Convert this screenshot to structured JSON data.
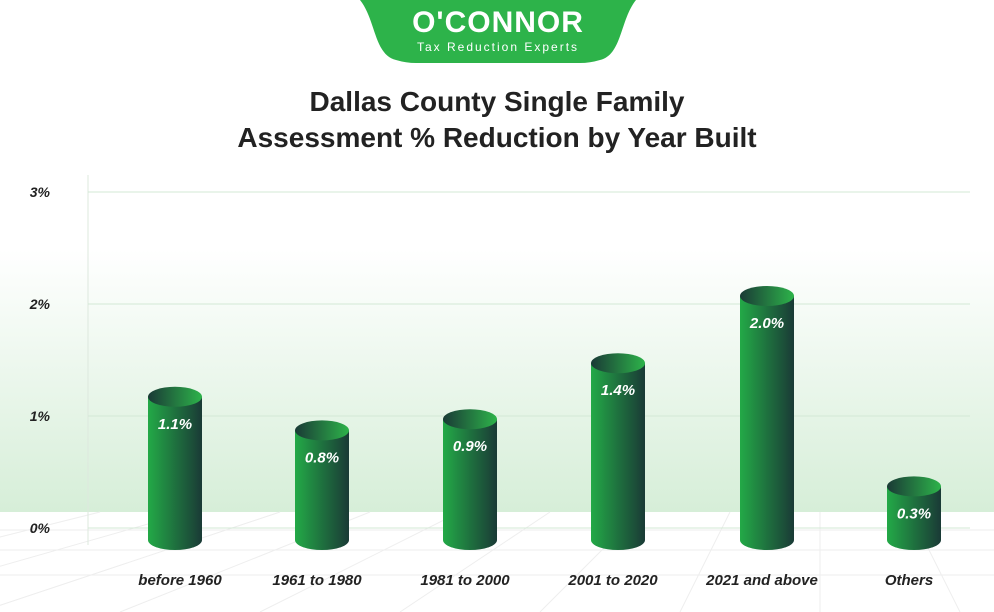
{
  "logo": {
    "name": "O'CONNOR",
    "tagline": "Tax Reduction Experts",
    "color": "#2db34a"
  },
  "chart_data": {
    "type": "bar",
    "title": "Dallas County Single Family Assessment % Reduction by Year Built",
    "title_lines": [
      "Dallas County Single Family",
      "Assessment % Reduction by Year Built"
    ],
    "categories": [
      "before 1960",
      "1961 to 1980",
      "1981 to 2000",
      "2001 to 2020",
      "2021 and above",
      "Others"
    ],
    "values": [
      1.1,
      0.8,
      0.9,
      1.4,
      2.0,
      0.3
    ],
    "data_labels": [
      "1.1%",
      "0.8%",
      "0.9%",
      "1.4%",
      "2.0%",
      "0.3%"
    ],
    "ylim": [
      0,
      3
    ],
    "yticks": [
      "0%",
      "1%",
      "2%",
      "3%"
    ],
    "grid": true,
    "bar_color": "#22a446"
  }
}
